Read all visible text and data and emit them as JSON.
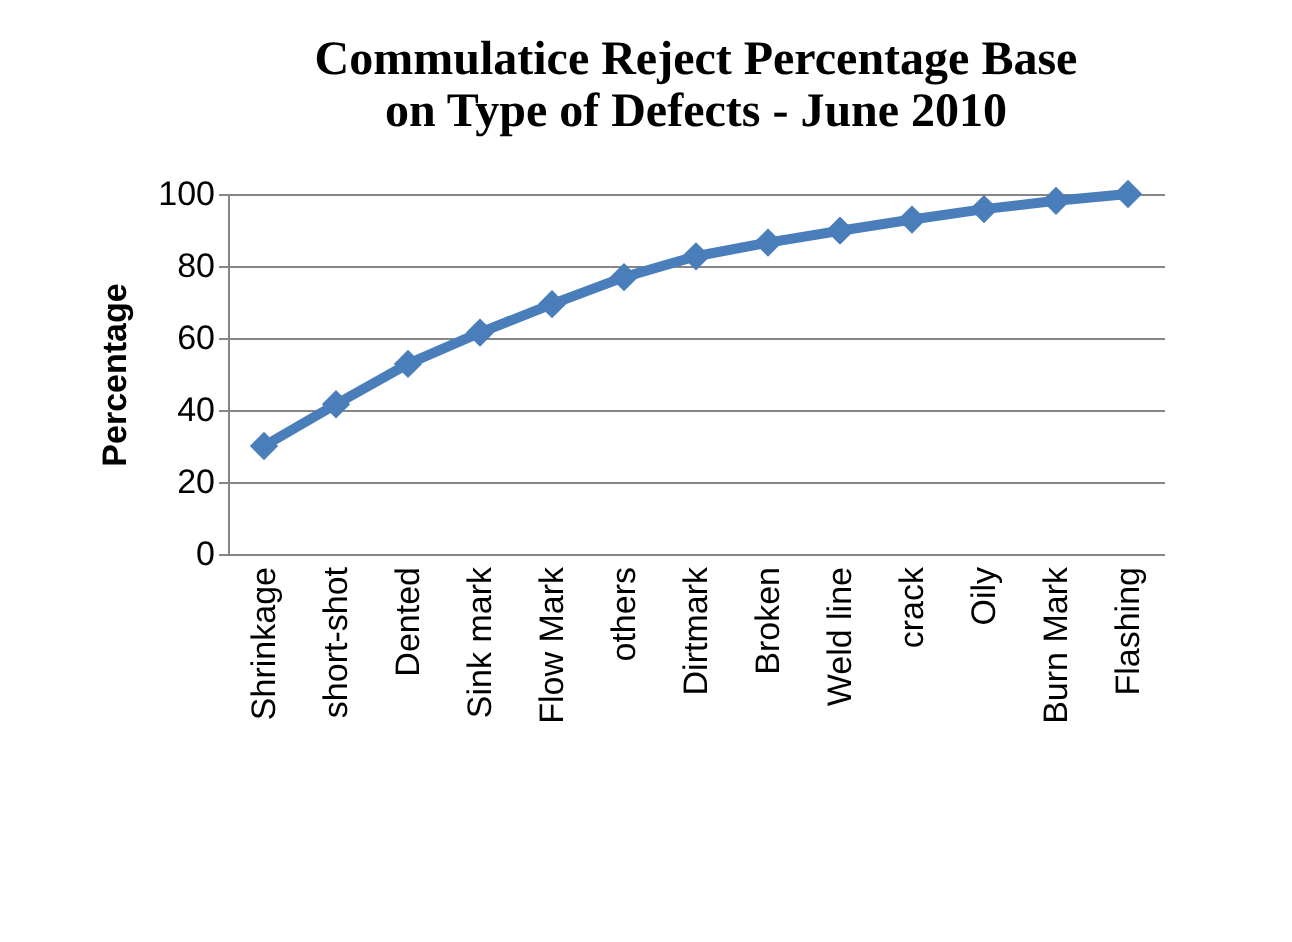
{
  "chart_data": {
    "type": "line",
    "title": [
      "Commulatice Reject Percentage Base",
      "on Type of Defects - June 2010"
    ],
    "ylabel": "Percentage",
    "categories": [
      "Shrinkage",
      "short-shot",
      "Dented",
      "Sink mark",
      "Flow Mark",
      "others",
      "Dirtmark",
      "Broken",
      "Weld line",
      "crack",
      "Oily",
      "Burn Mark",
      "Flashing"
    ],
    "series": [
      {
        "color": "#4a7ebb",
        "values": [
          30,
          41.6,
          52.8,
          61.5,
          69.4,
          76.9,
          82.7,
          86.5,
          89.8,
          92.9,
          95.8,
          98.1,
          100
        ]
      }
    ],
    "ylim": [
      0,
      100
    ],
    "yticks": [
      0,
      20,
      40,
      60,
      80,
      100
    ],
    "grid": "y",
    "marker": "diamond",
    "line_style": "solid"
  }
}
